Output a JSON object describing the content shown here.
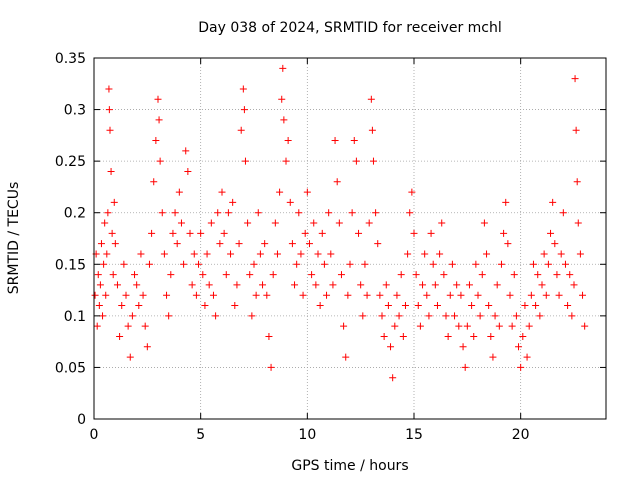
{
  "chart_data": {
    "type": "scatter",
    "title": "Day 038 of 2024, SRMTID for receiver mchl",
    "xlabel": "GPS time / hours",
    "ylabel": "SRMTID / TECUs",
    "xlim": [
      0,
      24
    ],
    "ylim": [
      0,
      0.35
    ],
    "xticks": [
      0,
      5,
      10,
      15,
      20
    ],
    "xtick_labels": [
      "0",
      "5",
      "10",
      "15",
      "20"
    ],
    "yticks": [
      0,
      0.05,
      0.1,
      0.15,
      0.2,
      0.25,
      0.3,
      0.35
    ],
    "ytick_labels": [
      "0",
      "0.05",
      "0.1",
      "0.15",
      "0.2",
      "0.25",
      "0.3",
      "0.35"
    ],
    "grid": true,
    "marker": "plus",
    "series": [
      {
        "name": "SRMTID",
        "color": "#ff0000",
        "points": [
          [
            0.05,
            0.12
          ],
          [
            0.1,
            0.16
          ],
          [
            0.15,
            0.09
          ],
          [
            0.2,
            0.14
          ],
          [
            0.25,
            0.11
          ],
          [
            0.3,
            0.13
          ],
          [
            0.35,
            0.17
          ],
          [
            0.4,
            0.1
          ],
          [
            0.45,
            0.15
          ],
          [
            0.5,
            0.19
          ],
          [
            0.55,
            0.12
          ],
          [
            0.6,
            0.16
          ],
          [
            0.65,
            0.2
          ],
          [
            0.7,
            0.32
          ],
          [
            0.72,
            0.3
          ],
          [
            0.75,
            0.28
          ],
          [
            0.8,
            0.24
          ],
          [
            0.85,
            0.18
          ],
          [
            0.9,
            0.14
          ],
          [
            0.95,
            0.21
          ],
          [
            1.0,
            0.17
          ],
          [
            1.1,
            0.13
          ],
          [
            1.2,
            0.08
          ],
          [
            1.3,
            0.11
          ],
          [
            1.4,
            0.15
          ],
          [
            1.5,
            0.12
          ],
          [
            1.6,
            0.09
          ],
          [
            1.7,
            0.06
          ],
          [
            1.8,
            0.1
          ],
          [
            1.9,
            0.14
          ],
          [
            2.0,
            0.13
          ],
          [
            2.1,
            0.11
          ],
          [
            2.2,
            0.16
          ],
          [
            2.3,
            0.12
          ],
          [
            2.4,
            0.09
          ],
          [
            2.5,
            0.07
          ],
          [
            2.6,
            0.15
          ],
          [
            2.7,
            0.18
          ],
          [
            2.8,
            0.23
          ],
          [
            2.9,
            0.27
          ],
          [
            3.0,
            0.31
          ],
          [
            3.05,
            0.29
          ],
          [
            3.1,
            0.25
          ],
          [
            3.2,
            0.2
          ],
          [
            3.3,
            0.16
          ],
          [
            3.4,
            0.12
          ],
          [
            3.5,
            0.1
          ],
          [
            3.6,
            0.14
          ],
          [
            3.7,
            0.18
          ],
          [
            3.8,
            0.2
          ],
          [
            3.9,
            0.17
          ],
          [
            4.0,
            0.22
          ],
          [
            4.1,
            0.19
          ],
          [
            4.2,
            0.15
          ],
          [
            4.3,
            0.26
          ],
          [
            4.4,
            0.24
          ],
          [
            4.5,
            0.18
          ],
          [
            4.6,
            0.13
          ],
          [
            4.7,
            0.16
          ],
          [
            4.8,
            0.12
          ],
          [
            4.9,
            0.15
          ],
          [
            5.0,
            0.18
          ],
          [
            5.1,
            0.14
          ],
          [
            5.2,
            0.11
          ],
          [
            5.3,
            0.16
          ],
          [
            5.4,
            0.13
          ],
          [
            5.5,
            0.19
          ],
          [
            5.6,
            0.12
          ],
          [
            5.7,
            0.1
          ],
          [
            5.8,
            0.2
          ],
          [
            5.9,
            0.17
          ],
          [
            6.0,
            0.22
          ],
          [
            6.1,
            0.18
          ],
          [
            6.2,
            0.14
          ],
          [
            6.3,
            0.2
          ],
          [
            6.4,
            0.16
          ],
          [
            6.5,
            0.21
          ],
          [
            6.6,
            0.11
          ],
          [
            6.7,
            0.13
          ],
          [
            6.8,
            0.17
          ],
          [
            6.9,
            0.28
          ],
          [
            7.0,
            0.32
          ],
          [
            7.05,
            0.3
          ],
          [
            7.1,
            0.25
          ],
          [
            7.2,
            0.19
          ],
          [
            7.3,
            0.14
          ],
          [
            7.4,
            0.1
          ],
          [
            7.5,
            0.15
          ],
          [
            7.6,
            0.12
          ],
          [
            7.7,
            0.2
          ],
          [
            7.8,
            0.16
          ],
          [
            7.9,
            0.13
          ],
          [
            8.0,
            0.17
          ],
          [
            8.1,
            0.12
          ],
          [
            8.2,
            0.08
          ],
          [
            8.3,
            0.05
          ],
          [
            8.4,
            0.14
          ],
          [
            8.5,
            0.19
          ],
          [
            8.6,
            0.16
          ],
          [
            8.7,
            0.22
          ],
          [
            8.8,
            0.31
          ],
          [
            8.85,
            0.34
          ],
          [
            8.9,
            0.29
          ],
          [
            9.0,
            0.25
          ],
          [
            9.1,
            0.27
          ],
          [
            9.2,
            0.21
          ],
          [
            9.3,
            0.17
          ],
          [
            9.4,
            0.13
          ],
          [
            9.5,
            0.15
          ],
          [
            9.6,
            0.2
          ],
          [
            9.7,
            0.16
          ],
          [
            9.8,
            0.12
          ],
          [
            9.9,
            0.18
          ],
          [
            10.0,
            0.22
          ],
          [
            10.1,
            0.17
          ],
          [
            10.2,
            0.14
          ],
          [
            10.3,
            0.19
          ],
          [
            10.4,
            0.13
          ],
          [
            10.5,
            0.16
          ],
          [
            10.6,
            0.11
          ],
          [
            10.7,
            0.18
          ],
          [
            10.8,
            0.15
          ],
          [
            10.9,
            0.12
          ],
          [
            11.0,
            0.2
          ],
          [
            11.1,
            0.16
          ],
          [
            11.2,
            0.13
          ],
          [
            11.3,
            0.27
          ],
          [
            11.4,
            0.23
          ],
          [
            11.5,
            0.19
          ],
          [
            11.6,
            0.14
          ],
          [
            11.7,
            0.09
          ],
          [
            11.8,
            0.06
          ],
          [
            11.9,
            0.12
          ],
          [
            12.0,
            0.15
          ],
          [
            12.1,
            0.2
          ],
          [
            12.2,
            0.27
          ],
          [
            12.3,
            0.25
          ],
          [
            12.4,
            0.18
          ],
          [
            12.5,
            0.13
          ],
          [
            12.6,
            0.1
          ],
          [
            12.7,
            0.15
          ],
          [
            12.8,
            0.12
          ],
          [
            12.9,
            0.19
          ],
          [
            13.0,
            0.31
          ],
          [
            13.05,
            0.28
          ],
          [
            13.1,
            0.25
          ],
          [
            13.2,
            0.2
          ],
          [
            13.3,
            0.17
          ],
          [
            13.4,
            0.12
          ],
          [
            13.5,
            0.1
          ],
          [
            13.6,
            0.08
          ],
          [
            13.7,
            0.13
          ],
          [
            13.8,
            0.11
          ],
          [
            13.9,
            0.07
          ],
          [
            14.0,
            0.04
          ],
          [
            14.1,
            0.09
          ],
          [
            14.2,
            0.12
          ],
          [
            14.3,
            0.1
          ],
          [
            14.4,
            0.14
          ],
          [
            14.5,
            0.08
          ],
          [
            14.6,
            0.11
          ],
          [
            14.7,
            0.16
          ],
          [
            14.8,
            0.2
          ],
          [
            14.9,
            0.22
          ],
          [
            15.0,
            0.18
          ],
          [
            15.1,
            0.14
          ],
          [
            15.2,
            0.11
          ],
          [
            15.3,
            0.09
          ],
          [
            15.4,
            0.13
          ],
          [
            15.5,
            0.16
          ],
          [
            15.6,
            0.12
          ],
          [
            15.7,
            0.1
          ],
          [
            15.8,
            0.18
          ],
          [
            15.9,
            0.15
          ],
          [
            16.0,
            0.13
          ],
          [
            16.1,
            0.11
          ],
          [
            16.2,
            0.16
          ],
          [
            16.3,
            0.19
          ],
          [
            16.4,
            0.14
          ],
          [
            16.5,
            0.1
          ],
          [
            16.6,
            0.08
          ],
          [
            16.7,
            0.12
          ],
          [
            16.8,
            0.15
          ],
          [
            16.9,
            0.1
          ],
          [
            17.0,
            0.13
          ],
          [
            17.1,
            0.09
          ],
          [
            17.2,
            0.12
          ],
          [
            17.3,
            0.07
          ],
          [
            17.4,
            0.05
          ],
          [
            17.5,
            0.09
          ],
          [
            17.6,
            0.13
          ],
          [
            17.7,
            0.11
          ],
          [
            17.8,
            0.08
          ],
          [
            17.9,
            0.15
          ],
          [
            18.0,
            0.12
          ],
          [
            18.1,
            0.1
          ],
          [
            18.2,
            0.14
          ],
          [
            18.3,
            0.19
          ],
          [
            18.4,
            0.16
          ],
          [
            18.5,
            0.11
          ],
          [
            18.6,
            0.08
          ],
          [
            18.7,
            0.06
          ],
          [
            18.8,
            0.1
          ],
          [
            18.9,
            0.13
          ],
          [
            19.0,
            0.09
          ],
          [
            19.1,
            0.15
          ],
          [
            19.2,
            0.18
          ],
          [
            19.3,
            0.21
          ],
          [
            19.4,
            0.17
          ],
          [
            19.5,
            0.12
          ],
          [
            19.6,
            0.09
          ],
          [
            19.7,
            0.14
          ],
          [
            19.8,
            0.1
          ],
          [
            19.9,
            0.07
          ],
          [
            20.0,
            0.05
          ],
          [
            20.1,
            0.08
          ],
          [
            20.2,
            0.11
          ],
          [
            20.3,
            0.06
          ],
          [
            20.4,
            0.09
          ],
          [
            20.5,
            0.12
          ],
          [
            20.6,
            0.15
          ],
          [
            20.7,
            0.11
          ],
          [
            20.8,
            0.14
          ],
          [
            20.9,
            0.1
          ],
          [
            21.0,
            0.13
          ],
          [
            21.1,
            0.16
          ],
          [
            21.2,
            0.12
          ],
          [
            21.3,
            0.15
          ],
          [
            21.4,
            0.18
          ],
          [
            21.5,
            0.21
          ],
          [
            21.6,
            0.17
          ],
          [
            21.7,
            0.14
          ],
          [
            21.8,
            0.12
          ],
          [
            21.9,
            0.16
          ],
          [
            22.0,
            0.2
          ],
          [
            22.1,
            0.15
          ],
          [
            22.2,
            0.11
          ],
          [
            22.3,
            0.14
          ],
          [
            22.4,
            0.1
          ],
          [
            22.5,
            0.13
          ],
          [
            22.55,
            0.33
          ],
          [
            22.6,
            0.28
          ],
          [
            22.65,
            0.23
          ],
          [
            22.7,
            0.19
          ],
          [
            22.8,
            0.16
          ],
          [
            22.9,
            0.12
          ],
          [
            23.0,
            0.09
          ]
        ]
      }
    ]
  }
}
